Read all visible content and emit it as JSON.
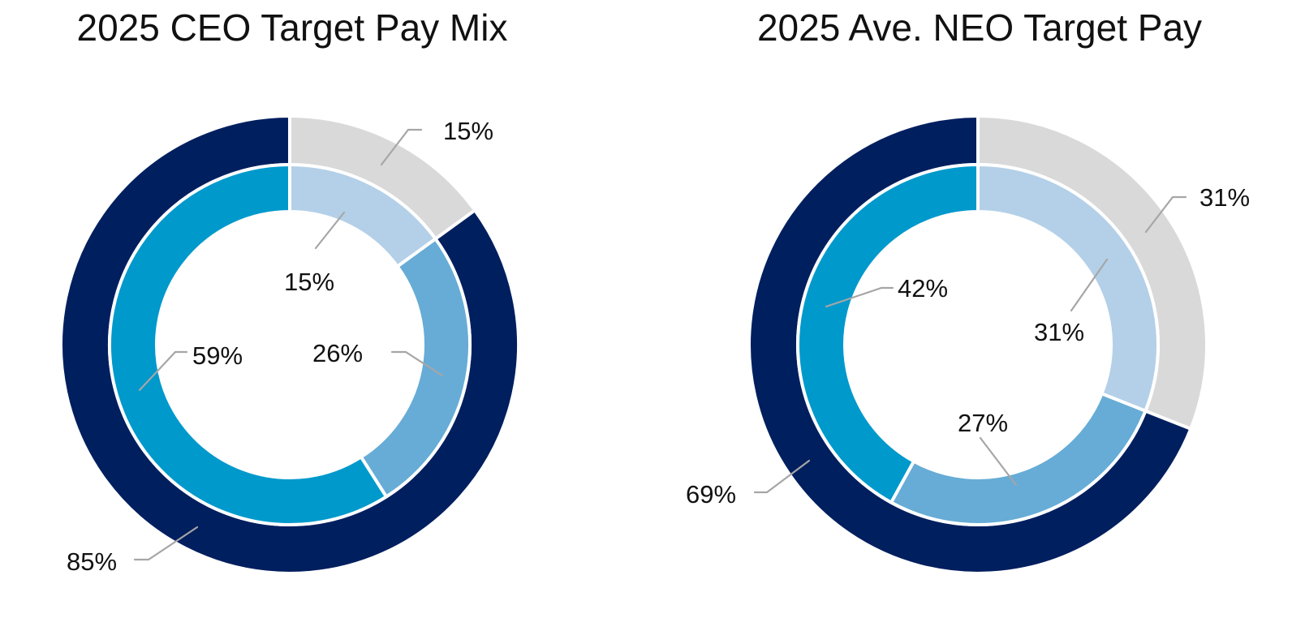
{
  "chart_data": [
    {
      "type": "pie",
      "variant": "nested-donut",
      "title": "2025 CEO Target Pay Mix",
      "rings": [
        {
          "name": "outer",
          "slices": [
            {
              "label": "15%",
              "value": 15,
              "color": "#d9d9d9"
            },
            {
              "label": "85%",
              "value": 85,
              "color": "#001f5f"
            }
          ]
        },
        {
          "name": "inner",
          "slices": [
            {
              "label": "15%",
              "value": 15,
              "color": "#b4d0e8"
            },
            {
              "label": "26%",
              "value": 26,
              "color": "#66acd6"
            },
            {
              "label": "59%",
              "value": 59,
              "color": "#0099cc"
            }
          ]
        }
      ]
    },
    {
      "type": "pie",
      "variant": "nested-donut",
      "title": "2025 Ave. NEO Target Pay",
      "rings": [
        {
          "name": "outer",
          "slices": [
            {
              "label": "31%",
              "value": 31,
              "color": "#d9d9d9"
            },
            {
              "label": "69%",
              "value": 69,
              "color": "#001f5f"
            }
          ]
        },
        {
          "name": "inner",
          "slices": [
            {
              "label": "31%",
              "value": 31,
              "color": "#b4d0e8"
            },
            {
              "label": "27%",
              "value": 27,
              "color": "#66acd6"
            },
            {
              "label": "42%",
              "value": 42,
              "color": "#0099cc"
            }
          ]
        }
      ]
    }
  ]
}
